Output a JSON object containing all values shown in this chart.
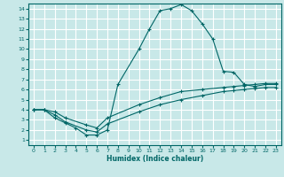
{
  "xlabel": "Humidex (Indice chaleur)",
  "bg_color": "#c8e8e8",
  "grid_color": "#ffffff",
  "line_color": "#006666",
  "xlim": [
    -0.5,
    23.5
  ],
  "ylim": [
    0.5,
    14.5
  ],
  "xticks": [
    0,
    1,
    2,
    3,
    4,
    5,
    6,
    7,
    8,
    9,
    10,
    11,
    12,
    13,
    14,
    15,
    16,
    17,
    18,
    19,
    20,
    21,
    22,
    23
  ],
  "yticks": [
    1,
    2,
    3,
    4,
    5,
    6,
    7,
    8,
    9,
    10,
    11,
    12,
    13,
    14
  ],
  "line1_x": [
    0,
    1,
    2,
    3,
    4,
    5,
    6,
    7,
    8,
    10,
    11,
    12,
    13,
    14,
    15,
    16,
    17,
    18,
    19,
    20,
    21,
    22,
    23
  ],
  "line1_y": [
    4,
    4,
    3.2,
    2.7,
    2.2,
    1.5,
    1.5,
    2.0,
    6.5,
    10,
    12,
    13.8,
    14.0,
    14.4,
    13.8,
    12.5,
    11,
    7.8,
    7.7,
    6.5,
    6.3,
    6.5,
    6.5
  ],
  "line2_x": [
    0,
    1,
    2,
    3,
    5,
    6,
    7,
    10,
    12,
    14,
    16,
    18,
    19,
    20,
    21,
    22,
    23
  ],
  "line2_y": [
    4,
    4,
    3.8,
    3.2,
    2.5,
    2.2,
    3.2,
    4.5,
    5.2,
    5.8,
    6.0,
    6.2,
    6.3,
    6.4,
    6.5,
    6.6,
    6.6
  ],
  "line3_x": [
    0,
    1,
    2,
    3,
    5,
    6,
    7,
    10,
    12,
    14,
    16,
    18,
    19,
    20,
    21,
    22,
    23
  ],
  "line3_y": [
    4,
    4,
    3.5,
    2.8,
    2.0,
    1.8,
    2.6,
    3.8,
    4.5,
    5.0,
    5.4,
    5.8,
    5.9,
    6.0,
    6.1,
    6.2,
    6.2
  ]
}
